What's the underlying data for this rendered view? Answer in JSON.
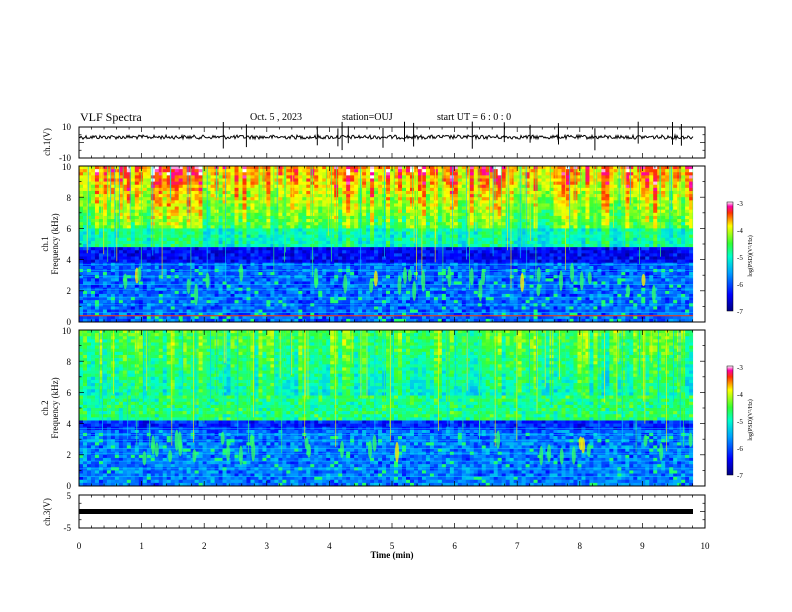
{
  "header": {
    "title": "VLF Spectra",
    "date": "Oct. 5 , 2023",
    "station": "station=OUJ",
    "start_ut": "start UT =  6 : 0 : 0"
  },
  "chart_data": [
    {
      "type": "line",
      "panel": "ch1-waveform",
      "ylabel": "ch.1(V)",
      "ylim": [
        -10,
        10
      ],
      "yticks": [
        "10",
        "-10"
      ],
      "xlim": [
        0,
        10
      ],
      "baseline_value": 3.5
    },
    {
      "type": "heatmap",
      "panel": "ch1-spectrogram",
      "ylabel_channel": "ch.1",
      "ylabel": "Frequency (kHz)",
      "ylim": [
        0,
        10
      ],
      "yticks": [
        "0",
        "2",
        "4",
        "6",
        "8",
        "10"
      ],
      "xlim": [
        0,
        10
      ],
      "colorbar": {
        "label": "log(PSD)(V²/Hz)",
        "range": [
          -7,
          -3
        ],
        "ticks": [
          "-3",
          "-4",
          "-5",
          "-6",
          "-7"
        ]
      }
    },
    {
      "type": "heatmap",
      "panel": "ch2-spectrogram",
      "ylabel_channel": "ch.2",
      "ylabel": "Frequency (kHz)",
      "ylim": [
        0,
        10
      ],
      "yticks": [
        "0",
        "2",
        "4",
        "6",
        "8",
        "10"
      ],
      "xlim": [
        0,
        10
      ],
      "colorbar": {
        "label": "log(PSD)(V²/Hz)",
        "range": [
          -7,
          -3
        ],
        "ticks": [
          "-3",
          "-4",
          "-5",
          "-6",
          "-7"
        ]
      }
    },
    {
      "type": "line",
      "panel": "ch3-waveform",
      "ylabel": "ch.3(V)",
      "ylim": [
        -5,
        5
      ],
      "yticks": [
        "5",
        "-5"
      ],
      "xlim": [
        0,
        10
      ],
      "baseline_value": 0
    }
  ],
  "xaxis": {
    "label": "Time (min)",
    "ticks": [
      "0",
      "1",
      "2",
      "3",
      "4",
      "5",
      "6",
      "7",
      "8",
      "9",
      "10"
    ]
  },
  "colors": {
    "dark_blue": "#00008f",
    "blue": "#0033ff",
    "cyan": "#00ccff",
    "green": "#33ff66",
    "yellow": "#ffee00",
    "red": "#ff0000",
    "magenta": "#ff00ff"
  }
}
